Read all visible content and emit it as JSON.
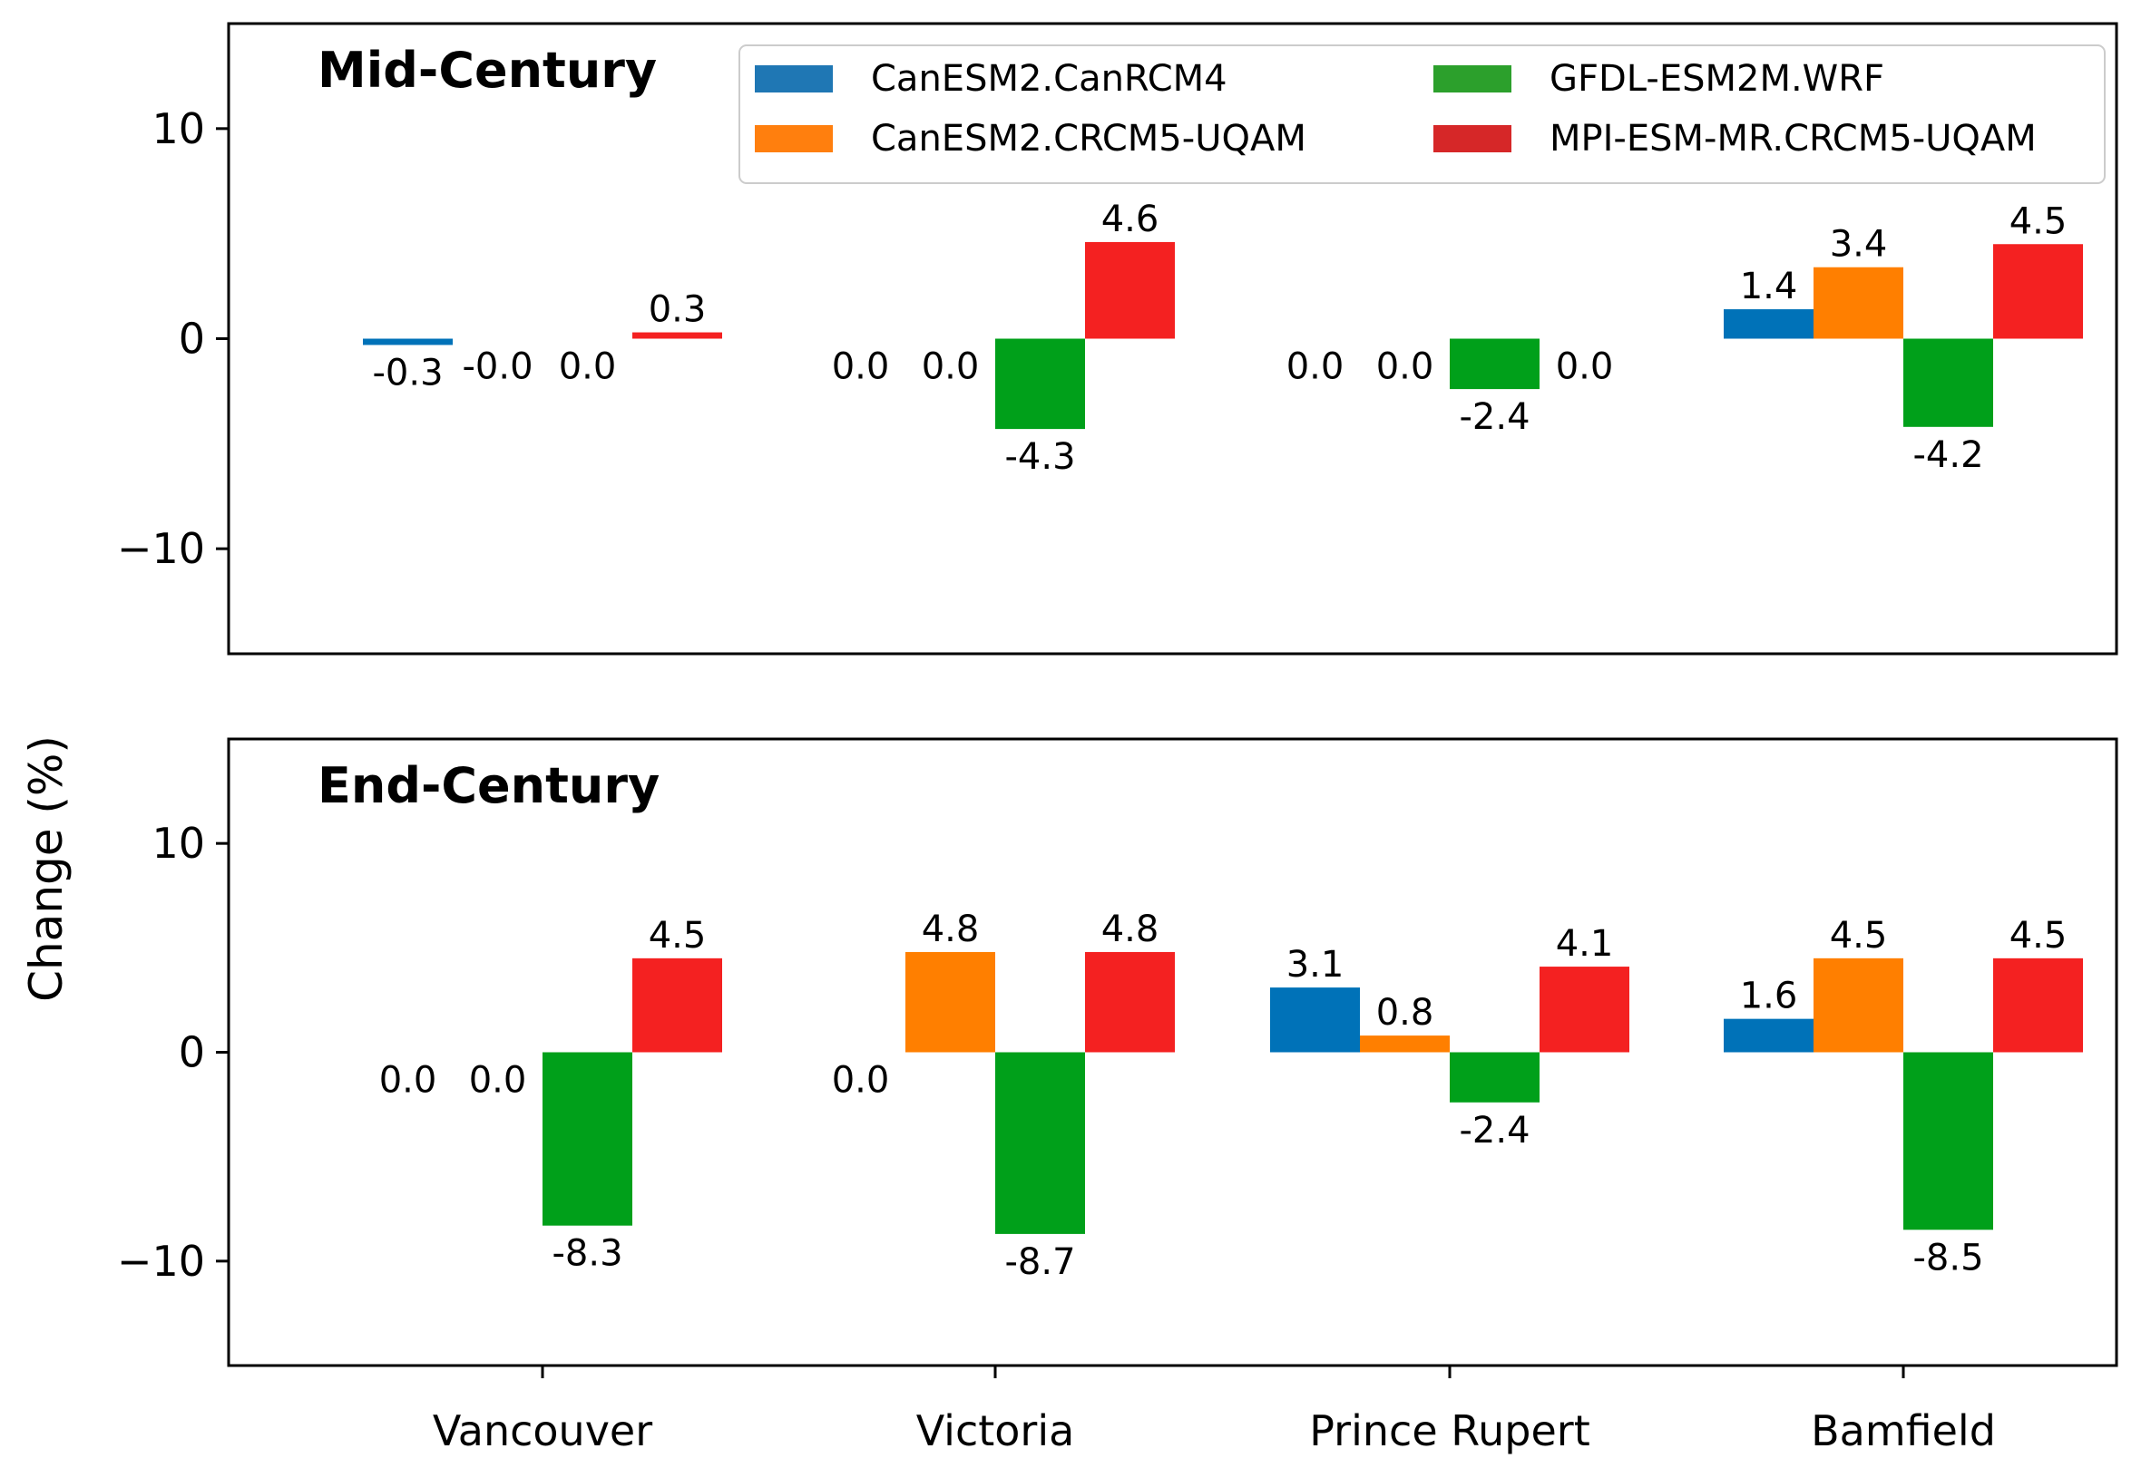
{
  "chart_data": {
    "type": "bar",
    "ylabel": "Change (%)",
    "ylim": [
      -15,
      15
    ],
    "yticks": [
      -10,
      0,
      10
    ],
    "categories": [
      "Vancouver",
      "Victoria",
      "Prince Rupert",
      "Bamfield"
    ],
    "legend": {
      "placement": "top-right of first panel",
      "entries": [
        {
          "name": "CanESM2.CanRCM4",
          "color": "#1f77b4"
        },
        {
          "name": "GFDL-ESM2M.WRF",
          "color": "#2ca02c"
        },
        {
          "name": "CanESM2.CRCM5-UQAM",
          "color": "#ff7f0e"
        },
        {
          "name": "MPI-ESM-MR.CRCM5-UQAM",
          "color": "#d62728"
        }
      ]
    },
    "series_names": [
      "CanESM2.CanRCM4",
      "CanESM2.CRCM5-UQAM",
      "GFDL-ESM2M.WRF",
      "MPI-ESM-MR.CRCM5-UQAM"
    ],
    "series_colors": [
      "#0072b8",
      "#ff7f00",
      "#00a01a",
      "#f42121"
    ],
    "panels": [
      {
        "title": "Mid-Century",
        "values": [
          [
            -0.3,
            -0.0,
            0.0,
            0.3
          ],
          [
            0.0,
            0.0,
            -4.3,
            4.6
          ],
          [
            0.0,
            0.0,
            -2.4,
            0.0
          ],
          [
            1.4,
            3.4,
            -4.2,
            4.5
          ]
        ],
        "labels": [
          [
            "-0.3",
            "-0.0",
            "0.0",
            "0.3"
          ],
          [
            "0.0",
            "0.0",
            "-4.3",
            "4.6"
          ],
          [
            "0.0",
            "0.0",
            "-2.4",
            "0.0"
          ],
          [
            "1.4",
            "3.4",
            "-4.2",
            "4.5"
          ]
        ]
      },
      {
        "title": "End-Century",
        "values": [
          [
            0.0,
            0.0,
            -8.3,
            4.5
          ],
          [
            0.0,
            4.8,
            -8.7,
            4.8
          ],
          [
            3.1,
            0.8,
            -2.4,
            4.1
          ],
          [
            1.6,
            4.5,
            -8.5,
            4.5
          ]
        ],
        "labels": [
          [
            "0.0",
            "0.0",
            "-8.3",
            "4.5"
          ],
          [
            "0.0",
            "4.8",
            "-8.7",
            "4.8"
          ],
          [
            "3.1",
            "0.8",
            "-2.4",
            "4.1"
          ],
          [
            "1.6",
            "4.5",
            "-8.5",
            "4.5"
          ]
        ]
      }
    ]
  }
}
